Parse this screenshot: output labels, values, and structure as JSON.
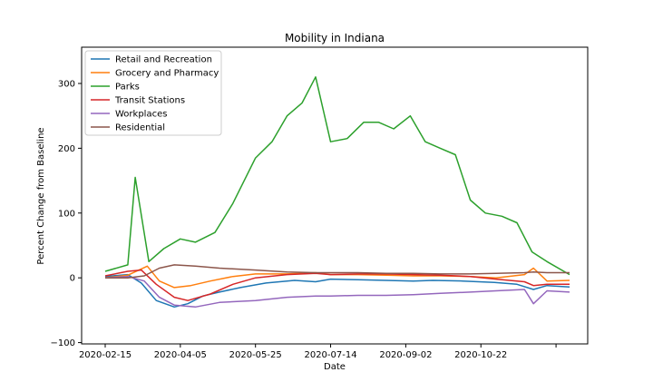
{
  "chart_data": {
    "type": "line",
    "title": "Mobility in Indiana",
    "xlabel": "Date",
    "ylabel": "Percent Change from Baseline",
    "x_range": [
      "2020-02-15",
      "2020-12-20"
    ],
    "x_ticks": [
      "2020-02-15",
      "2020-04-05",
      "2020-05-25",
      "2020-07-14",
      "2020-09-02",
      "2020-10-22",
      ""
    ],
    "ylim": [
      -102,
      356
    ],
    "y_ticks": [
      -100,
      0,
      100,
      200,
      300
    ],
    "grid": false,
    "legend_position": "top-left",
    "colors": {
      "retail": "#1f77b4",
      "grocery": "#ff7f0e",
      "parks": "#2ca02c",
      "transit": "#d62728",
      "workplaces": "#9467bd",
      "residential": "#8c564b"
    },
    "series": [
      {
        "key": "retail",
        "name": "Retail and Recreation",
        "x": [
          "2020-02-15",
          "2020-03-01",
          "2020-03-10",
          "2020-03-20",
          "2020-04-01",
          "2020-04-10",
          "2020-04-20",
          "2020-05-01",
          "2020-05-15",
          "2020-06-01",
          "2020-06-20",
          "2020-07-04",
          "2020-07-14",
          "2020-08-01",
          "2020-08-20",
          "2020-09-07",
          "2020-09-20",
          "2020-10-10",
          "2020-10-31",
          "2020-11-15",
          "2020-11-26",
          "2020-12-05",
          "2020-12-20"
        ],
        "values": [
          2,
          5,
          -8,
          -35,
          -45,
          -40,
          -28,
          -22,
          -15,
          -8,
          -4,
          -6,
          -2,
          -3,
          -4,
          -5,
          -4,
          -5,
          -7,
          -10,
          -18,
          -12,
          -14
        ]
      },
      {
        "key": "grocery",
        "name": "Grocery and Pharmacy",
        "x": [
          "2020-02-15",
          "2020-03-01",
          "2020-03-14",
          "2020-03-22",
          "2020-04-01",
          "2020-04-12",
          "2020-04-25",
          "2020-05-10",
          "2020-05-25",
          "2020-06-15",
          "2020-07-04",
          "2020-07-14",
          "2020-08-01",
          "2020-08-20",
          "2020-09-07",
          "2020-09-25",
          "2020-10-15",
          "2020-11-01",
          "2020-11-20",
          "2020-11-26",
          "2020-12-05",
          "2020-12-20"
        ],
        "values": [
          0,
          4,
          18,
          -5,
          -15,
          -12,
          -5,
          2,
          6,
          6,
          8,
          5,
          5,
          4,
          3,
          3,
          2,
          0,
          5,
          15,
          -5,
          -4
        ]
      },
      {
        "key": "parks",
        "name": "Parks",
        "x": [
          "2020-02-15",
          "2020-03-01",
          "2020-03-06",
          "2020-03-15",
          "2020-03-25",
          "2020-04-05",
          "2020-04-15",
          "2020-04-28",
          "2020-05-10",
          "2020-05-25",
          "2020-06-05",
          "2020-06-15",
          "2020-06-25",
          "2020-07-04",
          "2020-07-14",
          "2020-07-25",
          "2020-08-05",
          "2020-08-15",
          "2020-08-25",
          "2020-09-05",
          "2020-09-15",
          "2020-09-25",
          "2020-10-05",
          "2020-10-15",
          "2020-10-25",
          "2020-11-05",
          "2020-11-15",
          "2020-11-25",
          "2020-12-05",
          "2020-12-20"
        ],
        "values": [
          10,
          20,
          155,
          25,
          45,
          60,
          55,
          70,
          115,
          185,
          210,
          250,
          270,
          310,
          210,
          215,
          240,
          240,
          230,
          250,
          210,
          200,
          190,
          120,
          100,
          95,
          85,
          40,
          25,
          5
        ]
      },
      {
        "key": "transit",
        "name": "Transit Stations",
        "x": [
          "2020-02-15",
          "2020-03-01",
          "2020-03-10",
          "2020-03-20",
          "2020-04-01",
          "2020-04-10",
          "2020-04-25",
          "2020-05-10",
          "2020-05-25",
          "2020-06-15",
          "2020-07-04",
          "2020-07-14",
          "2020-08-01",
          "2020-08-20",
          "2020-09-07",
          "2020-09-25",
          "2020-10-15",
          "2020-11-01",
          "2020-11-20",
          "2020-11-26",
          "2020-12-05",
          "2020-12-20"
        ],
        "values": [
          3,
          10,
          12,
          -10,
          -30,
          -35,
          -25,
          -10,
          0,
          5,
          7,
          5,
          6,
          6,
          5,
          4,
          2,
          -2,
          -6,
          -12,
          -10,
          -10
        ]
      },
      {
        "key": "workplaces",
        "name": "Workplaces",
        "x": [
          "2020-02-15",
          "2020-03-01",
          "2020-03-12",
          "2020-03-22",
          "2020-04-01",
          "2020-04-15",
          "2020-05-01",
          "2020-05-25",
          "2020-06-15",
          "2020-07-04",
          "2020-07-14",
          "2020-08-01",
          "2020-08-20",
          "2020-09-07",
          "2020-09-25",
          "2020-10-15",
          "2020-11-01",
          "2020-11-20",
          "2020-11-26",
          "2020-12-05",
          "2020-12-20"
        ],
        "values": [
          0,
          2,
          -5,
          -30,
          -42,
          -45,
          -38,
          -35,
          -30,
          -28,
          -28,
          -27,
          -27,
          -26,
          -24,
          -22,
          -20,
          -18,
          -40,
          -20,
          -22
        ]
      },
      {
        "key": "residential",
        "name": "Residential",
        "x": [
          "2020-02-15",
          "2020-03-01",
          "2020-03-12",
          "2020-03-22",
          "2020-04-01",
          "2020-04-15",
          "2020-05-01",
          "2020-05-25",
          "2020-06-15",
          "2020-07-04",
          "2020-07-14",
          "2020-08-01",
          "2020-08-20",
          "2020-09-07",
          "2020-09-25",
          "2020-10-15",
          "2020-11-01",
          "2020-11-20",
          "2020-11-26",
          "2020-12-05",
          "2020-12-20"
        ],
        "values": [
          0,
          0,
          3,
          15,
          20,
          18,
          15,
          12,
          9,
          8,
          8,
          8,
          7,
          7,
          6,
          6,
          7,
          8,
          9,
          8,
          8
        ]
      }
    ]
  }
}
